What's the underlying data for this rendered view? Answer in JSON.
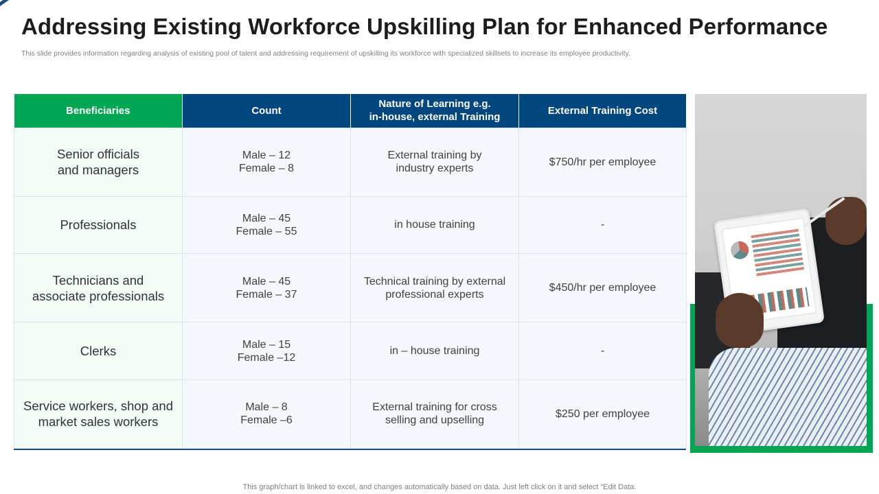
{
  "slide": {
    "title": "Addressing Existing Workforce Upskilling Plan for Enhanced Performance",
    "subtitle": "This slide provides information regarding analysis of existing pool of talent and addressing requirement of upskilling its workforce with specialized skillsets to increase its employee productivity.",
    "footer": "This graph/chart is linked to excel,  and changes automatically based on data. Just left click on it and select “Edit Data."
  },
  "colors": {
    "accent_green": "#00a651",
    "header_blue": "#00467f",
    "title_text": "#1d1d1d"
  },
  "table": {
    "headers": [
      {
        "lines": [
          "Beneficiaries"
        ]
      },
      {
        "lines": [
          "Count"
        ]
      },
      {
        "lines": [
          "Nature of Learning e.g.",
          "in-house, external Training"
        ]
      },
      {
        "lines": [
          "External Training Cost"
        ]
      }
    ],
    "rows": [
      {
        "beneficiary": [
          "Senior officials",
          "and managers"
        ],
        "count": [
          "Male – 12",
          "Female – 8"
        ],
        "nature": [
          "External training by",
          "industry experts"
        ],
        "cost": [
          "$750/hr per employee"
        ]
      },
      {
        "beneficiary": [
          "Professionals"
        ],
        "count": [
          "Male – 45",
          "Female – 55"
        ],
        "nature": [
          "in house training"
        ],
        "cost": [
          "-"
        ]
      },
      {
        "beneficiary": [
          "Technicians and",
          "associate professionals"
        ],
        "count": [
          "Male – 45",
          "Female – 37"
        ],
        "nature": [
          "Technical training by external",
          "professional experts"
        ],
        "cost": [
          "$450/hr per employee"
        ]
      },
      {
        "beneficiary": [
          "Clerks"
        ],
        "count": [
          "Male – 15",
          "Female –12"
        ],
        "nature": [
          "in – house training"
        ],
        "cost": [
          "-"
        ]
      },
      {
        "beneficiary": [
          "Service workers, shop and",
          "market sales workers"
        ],
        "count": [
          "Male – 8",
          "Female –6"
        ],
        "nature": [
          "External training for cross",
          "selling and upselling"
        ],
        "cost": [
          "$250 per employee"
        ]
      }
    ]
  },
  "image": {
    "icon": "photo-person-using-tablet-icon"
  }
}
